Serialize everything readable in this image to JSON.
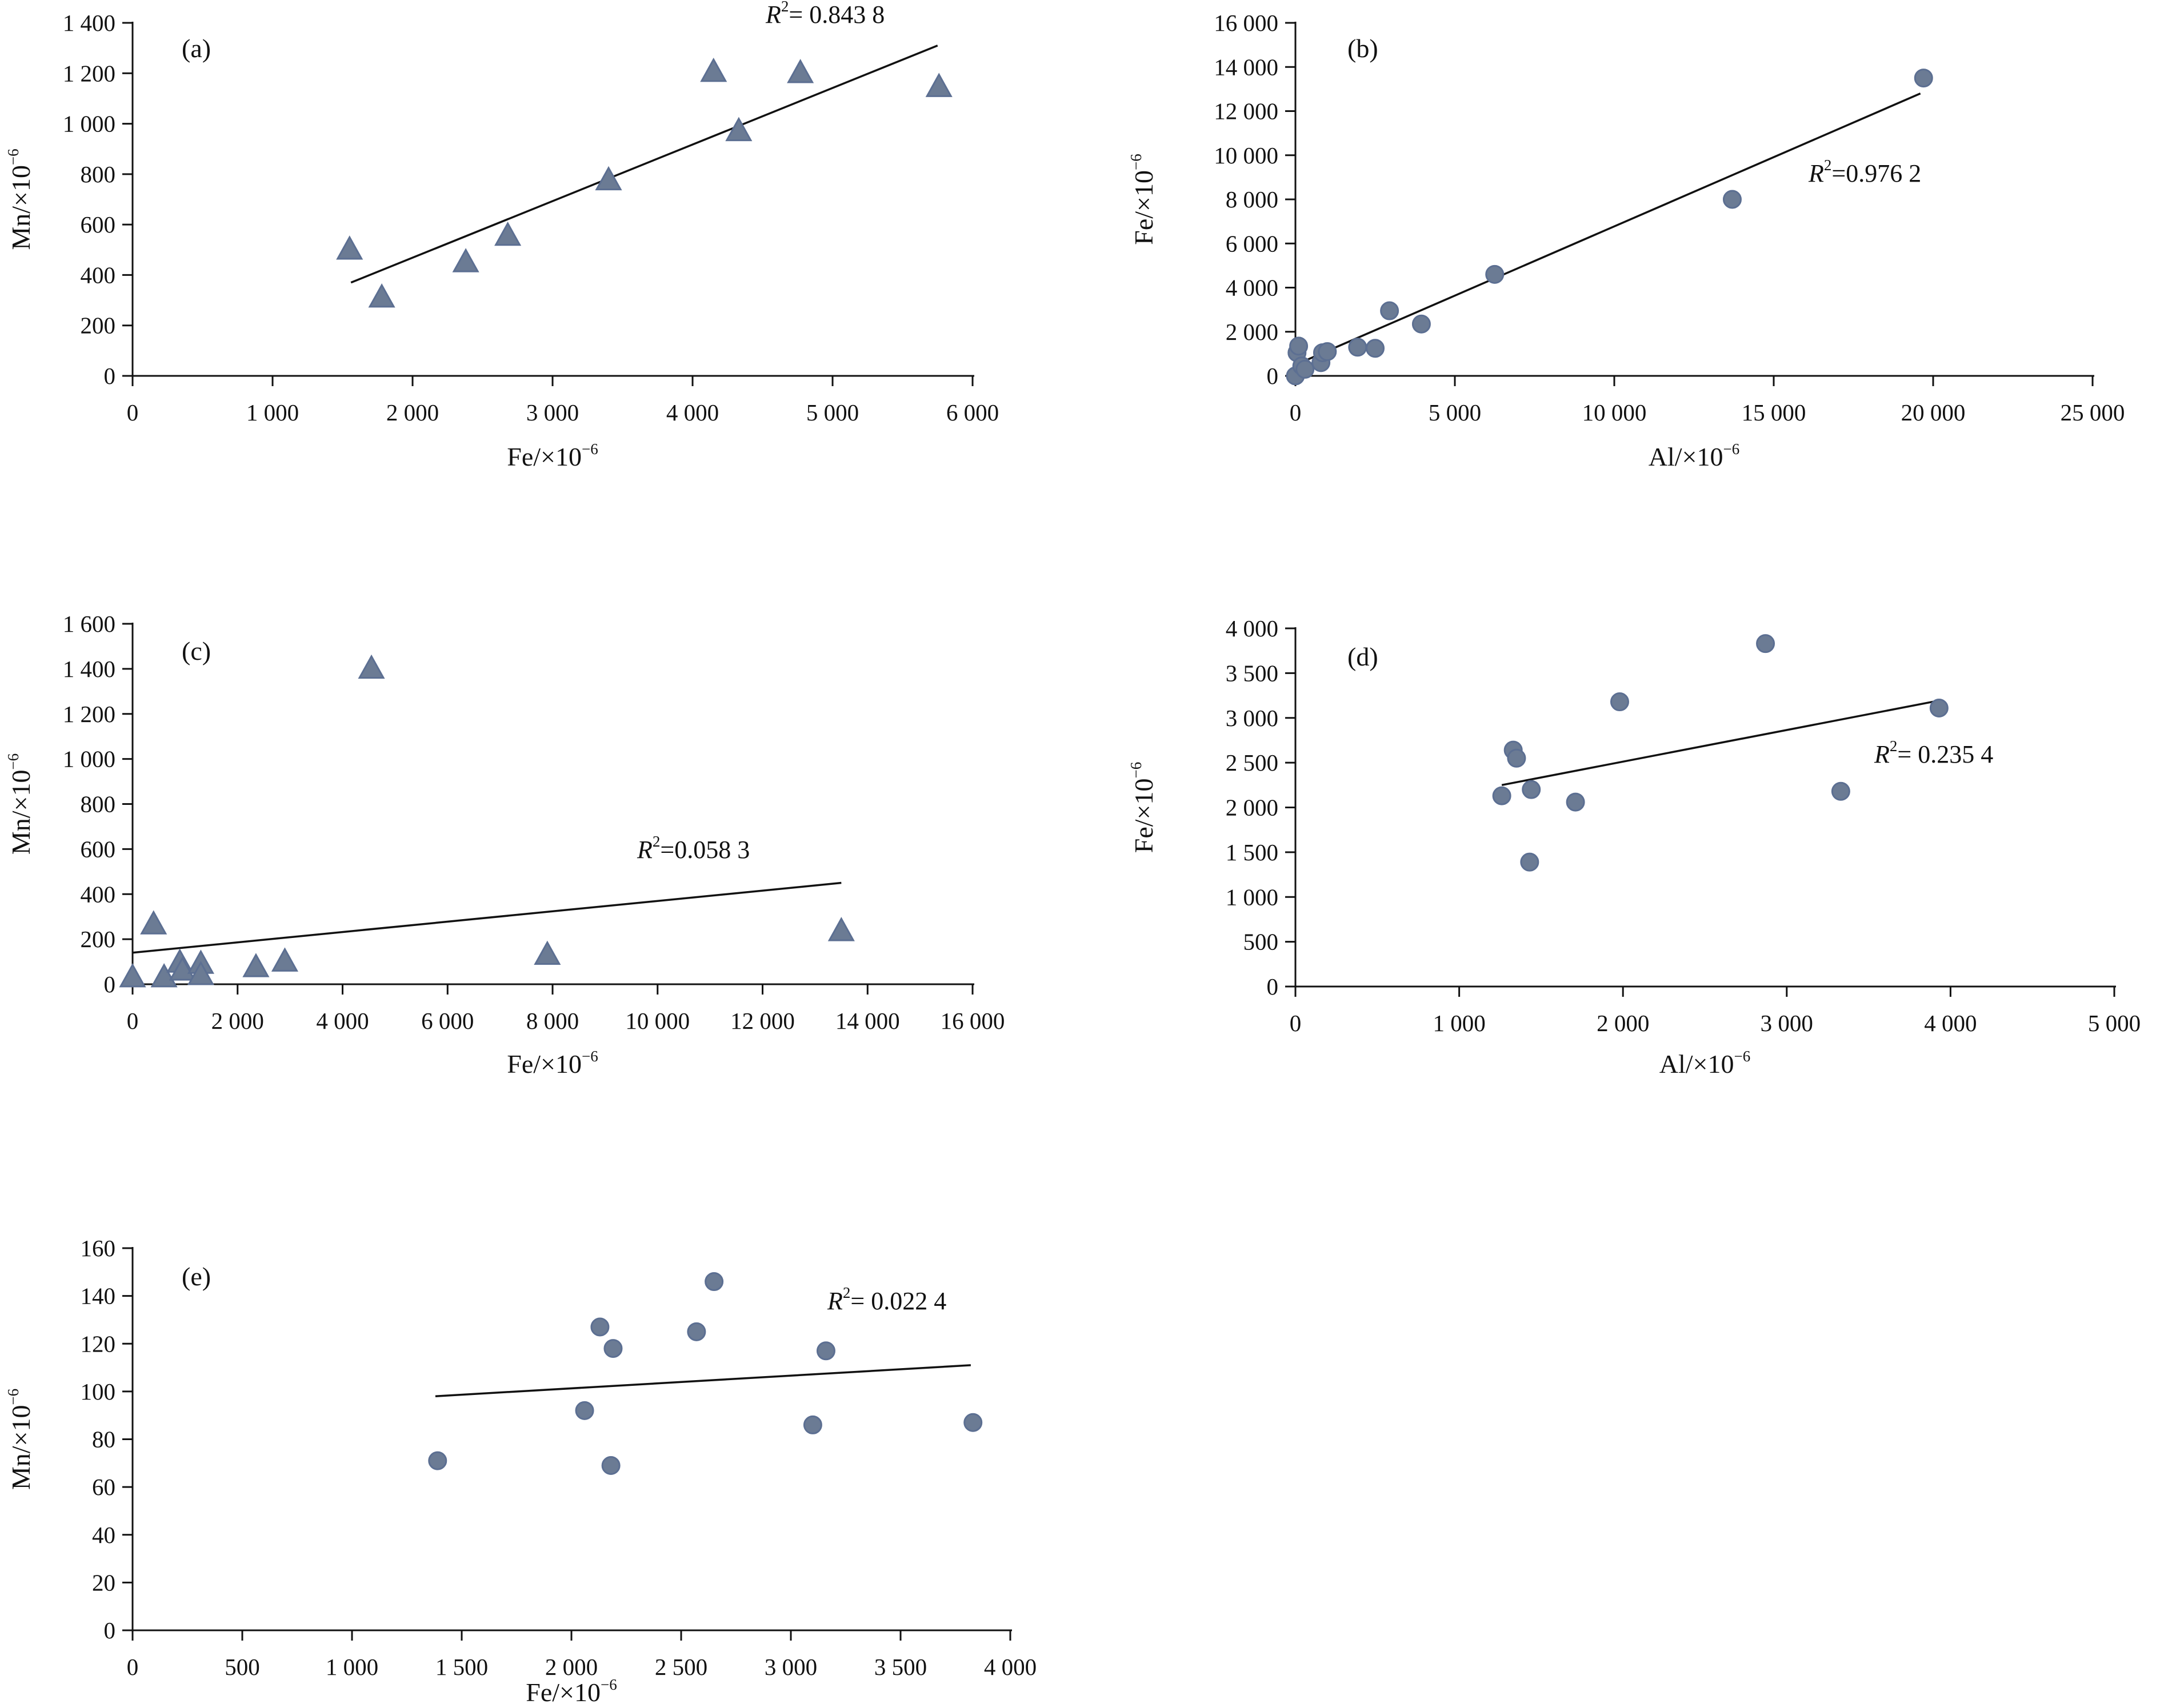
{
  "chart_data": [
    {
      "type": "scatter",
      "panel_label": "(a)",
      "xlabel": "Fe/×10",
      "xlabel_exp": "−6",
      "ylabel": "Mn/×10",
      "ylabel_exp": "−6",
      "xlim": [
        0,
        6000
      ],
      "ylim": [
        0,
        1400
      ],
      "xticks": [
        0,
        1000,
        2000,
        3000,
        4000,
        5000,
        6000
      ],
      "xtick_labels": [
        "0",
        "1 000",
        "2 000",
        "3 000",
        "4 000",
        "5 000",
        "6 000"
      ],
      "yticks": [
        0,
        200,
        400,
        600,
        800,
        1000,
        1200,
        1400
      ],
      "ytick_labels": [
        "0",
        "200",
        "400",
        "600",
        "800",
        "1 000",
        "1 200",
        "1 400"
      ],
      "marker": "triangle",
      "marker_color": "#6b7b94",
      "r2_label": "= 0.843 8",
      "trendline": [
        [
          1560,
          370
        ],
        [
          5750,
          1310
        ]
      ],
      "points": [
        {
          "x": 1550,
          "y": 500
        },
        {
          "x": 1780,
          "y": 310
        },
        {
          "x": 2380,
          "y": 450
        },
        {
          "x": 2680,
          "y": 555
        },
        {
          "x": 3400,
          "y": 775
        },
        {
          "x": 4150,
          "y": 1205
        },
        {
          "x": 4330,
          "y": 970
        },
        {
          "x": 4770,
          "y": 1200
        },
        {
          "x": 5760,
          "y": 1145
        }
      ],
      "grid": false
    },
    {
      "type": "scatter",
      "panel_label": "(b)",
      "xlabel": "Al/×10",
      "xlabel_exp": "−6",
      "ylabel": "Fe/×10",
      "ylabel_exp": "−6",
      "xlim": [
        0,
        25000
      ],
      "ylim": [
        0,
        16000
      ],
      "xticks": [
        0,
        5000,
        10000,
        15000,
        20000,
        25000
      ],
      "xtick_labels": [
        "0",
        "5 000",
        "10 000",
        "15 000",
        "20 000",
        "25 000"
      ],
      "yticks": [
        0,
        2000,
        4000,
        6000,
        8000,
        10000,
        12000,
        14000,
        16000
      ],
      "ytick_labels": [
        "0",
        "2 000",
        "4 000",
        "6 000",
        "8 000",
        "10 000",
        "12 000",
        "14 000",
        "16 000"
      ],
      "marker": "circle",
      "marker_color": "#6b7b94",
      "r2_label": "=0.976 2",
      "trendline": [
        [
          0,
          500
        ],
        [
          19600,
          12800
        ]
      ],
      "points": [
        {
          "x": 0,
          "y": 0
        },
        {
          "x": 50,
          "y": 1050
        },
        {
          "x": 100,
          "y": 1350
        },
        {
          "x": 200,
          "y": 450
        },
        {
          "x": 300,
          "y": 300
        },
        {
          "x": 800,
          "y": 600
        },
        {
          "x": 850,
          "y": 1050
        },
        {
          "x": 1000,
          "y": 1100
        },
        {
          "x": 1950,
          "y": 1300
        },
        {
          "x": 2500,
          "y": 1250
        },
        {
          "x": 2950,
          "y": 2950
        },
        {
          "x": 3950,
          "y": 2350
        },
        {
          "x": 6250,
          "y": 4600
        },
        {
          "x": 13700,
          "y": 8000
        },
        {
          "x": 19700,
          "y": 13500
        }
      ],
      "grid": false
    },
    {
      "type": "scatter",
      "panel_label": "(c)",
      "xlabel": "Fe/×10",
      "xlabel_exp": "−6",
      "ylabel": "Mn/×10",
      "ylabel_exp": "−6",
      "xlim": [
        0,
        16000
      ],
      "ylim": [
        0,
        1600
      ],
      "xticks": [
        0,
        2000,
        4000,
        6000,
        8000,
        10000,
        12000,
        14000,
        16000
      ],
      "xtick_labels": [
        "0",
        "2 000",
        "4 000",
        "6 000",
        "8 000",
        "10 000",
        "12 000",
        "14 000",
        "16 000"
      ],
      "yticks": [
        0,
        200,
        400,
        600,
        800,
        1000,
        1200,
        1400,
        1600
      ],
      "ytick_labels": [
        "0",
        "200",
        "400",
        "600",
        "800",
        "1 000",
        "1 200",
        "1 400",
        "1 600"
      ],
      "marker": "triangle",
      "marker_color": "#6b7b94",
      "r2_label": "=0.058 3",
      "trendline": [
        [
          0,
          140
        ],
        [
          13500,
          450
        ]
      ],
      "points": [
        {
          "x": 0,
          "y": 30
        },
        {
          "x": 400,
          "y": 265
        },
        {
          "x": 600,
          "y": 30
        },
        {
          "x": 900,
          "y": 95
        },
        {
          "x": 950,
          "y": 60
        },
        {
          "x": 1300,
          "y": 90
        },
        {
          "x": 1300,
          "y": 40
        },
        {
          "x": 2350,
          "y": 75
        },
        {
          "x": 2900,
          "y": 100
        },
        {
          "x": 4550,
          "y": 1400
        },
        {
          "x": 7900,
          "y": 130
        },
        {
          "x": 13500,
          "y": 235
        }
      ],
      "grid": false
    },
    {
      "type": "scatter",
      "panel_label": "(d)",
      "xlabel": "Al/×10",
      "xlabel_exp": "−6",
      "ylabel": "Fe/×10",
      "ylabel_exp": "−6",
      "xlim": [
        0,
        5000
      ],
      "ylim": [
        0,
        4000
      ],
      "xticks": [
        0,
        1000,
        2000,
        3000,
        4000,
        5000
      ],
      "xtick_labels": [
        "0",
        "1 000",
        "2 000",
        "3 000",
        "4 000",
        "5 000"
      ],
      "yticks": [
        0,
        500,
        1000,
        1500,
        2000,
        2500,
        3000,
        3500,
        4000
      ],
      "ytick_labels": [
        "0",
        "500",
        "1 000",
        "1 500",
        "2 000",
        "2 500",
        "3 000",
        "3 500",
        "4 000"
      ],
      "marker": "circle",
      "marker_color": "#6b7b94",
      "r2_label": "= 0.235 4",
      "trendline": [
        [
          1260,
          2250
        ],
        [
          3920,
          3190
        ]
      ],
      "points": [
        {
          "x": 1260,
          "y": 2130
        },
        {
          "x": 1330,
          "y": 2640
        },
        {
          "x": 1350,
          "y": 2550
        },
        {
          "x": 1430,
          "y": 1390
        },
        {
          "x": 1440,
          "y": 2200
        },
        {
          "x": 1710,
          "y": 2060
        },
        {
          "x": 1980,
          "y": 3180
        },
        {
          "x": 2870,
          "y": 3830
        },
        {
          "x": 3330,
          "y": 2180
        },
        {
          "x": 3930,
          "y": 3110
        }
      ],
      "grid": false
    },
    {
      "type": "scatter",
      "panel_label": "(e)",
      "xlabel": "Fe/×10",
      "xlabel_exp": "−6",
      "ylabel": "Mn/×10",
      "ylabel_exp": "−6",
      "xlim": [
        0,
        4000
      ],
      "ylim": [
        0,
        160
      ],
      "xticks": [
        0,
        500,
        1000,
        1500,
        2000,
        2500,
        3000,
        3500,
        4000
      ],
      "xtick_labels": [
        "0",
        "500",
        "1 000",
        "1 500",
        "2 000",
        "2 500",
        "3 000",
        "3 500",
        "4 000"
      ],
      "yticks": [
        0,
        20,
        40,
        60,
        80,
        100,
        120,
        140,
        160
      ],
      "ytick_labels": [
        "0",
        "20",
        "40",
        "60",
        "80",
        "100",
        "120",
        "140",
        "160"
      ],
      "marker": "circle",
      "marker_color": "#6b7b94",
      "r2_label": "= 0.022 4",
      "trendline": [
        [
          1380,
          98
        ],
        [
          3820,
          111
        ]
      ],
      "points": [
        {
          "x": 1390,
          "y": 71
        },
        {
          "x": 2060,
          "y": 92
        },
        {
          "x": 2130,
          "y": 127
        },
        {
          "x": 2180,
          "y": 69
        },
        {
          "x": 2190,
          "y": 118
        },
        {
          "x": 2570,
          "y": 125
        },
        {
          "x": 2650,
          "y": 146
        },
        {
          "x": 3100,
          "y": 86
        },
        {
          "x": 3160,
          "y": 117
        },
        {
          "x": 3830,
          "y": 87
        }
      ],
      "grid": false
    }
  ]
}
